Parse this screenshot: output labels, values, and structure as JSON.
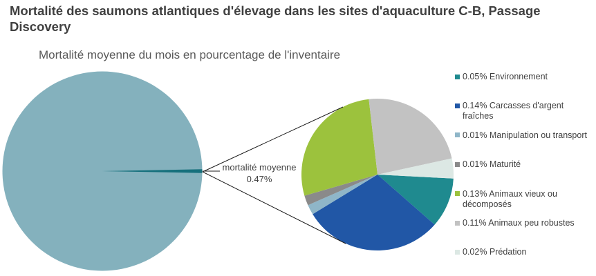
{
  "header": {
    "title": "Mortalité des saumons atlantiques d'élevage dans les sites d'aquaculture C-B, Passage Discovery",
    "subtitle": "Mortalité moyenne du mois en pourcentage de l'inventaire"
  },
  "callout": {
    "label": "mortalité moyenne",
    "value": "0.47%"
  },
  "legend": {
    "items": [
      {
        "text": "0.05% Environnement",
        "color": "#1F8A8F"
      },
      {
        "text": "0.14% Carcasses d'argent fraîches",
        "color": "#2157A6"
      },
      {
        "text": "0.01% Manipulation ou transport",
        "color": "#8FB6C8"
      },
      {
        "text": "0.01% Maturité",
        "color": "#8A8A8A"
      },
      {
        "text": "0.13% Animaux vieux ou décomposés",
        "color": "#9CC23D"
      },
      {
        "text": "0.11% Animaux peu robustes",
        "color": "#C2C2C2"
      },
      {
        "text": "0.02% Prédation",
        "color": "#DCE8E4"
      }
    ]
  },
  "chart_data": [
    {
      "type": "pie",
      "name": "inventaire-pie",
      "title": "Mortalité moyenne du mois en pourcentage de l'inventaire",
      "slices": [
        {
          "label": "inventaire",
          "value": 99.53,
          "color": "#84B1BD"
        },
        {
          "label": "mortalité moyenne",
          "value": 0.47,
          "color": "#16707C",
          "angle_center_deg": 90
        }
      ]
    },
    {
      "type": "pie",
      "name": "mortalite-breakdown-pie",
      "start_angle_deg": 93,
      "legend_position": "right",
      "slices": [
        {
          "label": "Environnement",
          "value": 0.05,
          "color": "#1F8A8F"
        },
        {
          "label": "Carcasses d'argent fraîches",
          "value": 0.14,
          "color": "#2157A6"
        },
        {
          "label": "Manipulation ou transport",
          "value": 0.01,
          "color": "#8FB6C8"
        },
        {
          "label": "Maturité",
          "value": 0.01,
          "color": "#8A8A8A"
        },
        {
          "label": "Animaux vieux ou décomposés",
          "value": 0.13,
          "color": "#9CC23D"
        },
        {
          "label": "Animaux peu robustes",
          "value": 0.11,
          "color": "#C2C2C2"
        },
        {
          "label": "Prédation",
          "value": 0.02,
          "color": "#DCE8E4"
        }
      ]
    }
  ]
}
